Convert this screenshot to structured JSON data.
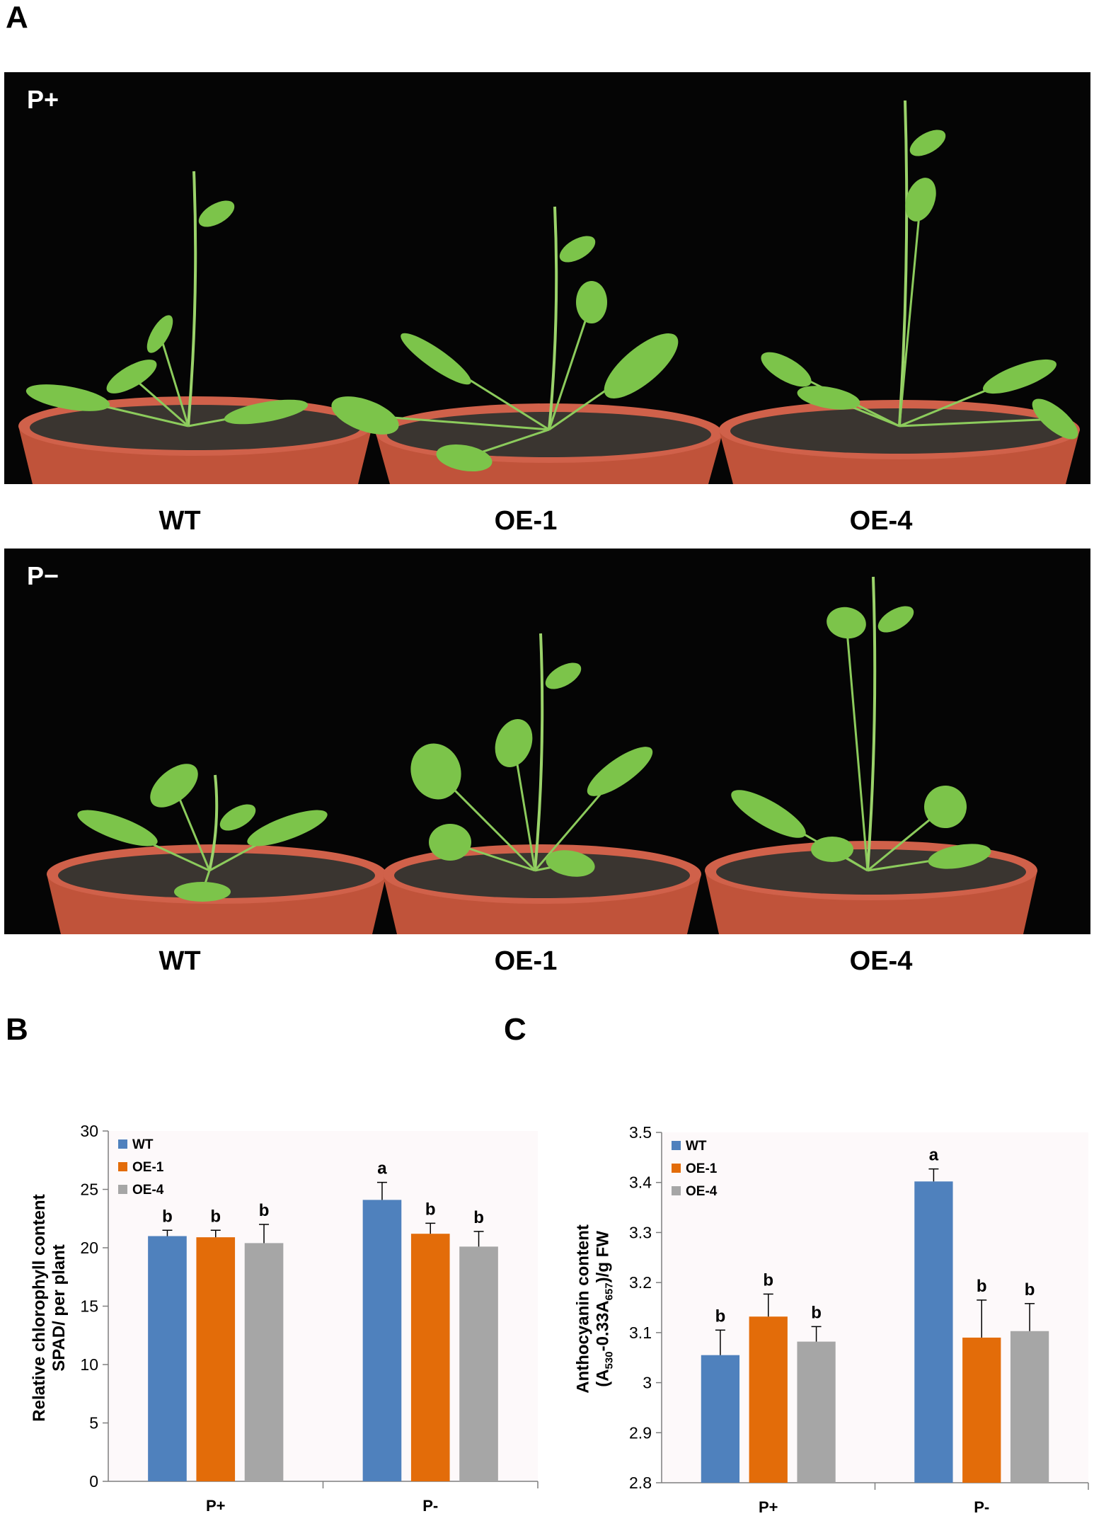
{
  "panel_a": {
    "letter": "A",
    "top_condition": "P+",
    "bottom_condition": "P−",
    "genotypes": [
      "WT",
      "OE-1",
      "OE-4"
    ]
  },
  "panel_b": {
    "letter": "B"
  },
  "panel_c": {
    "letter": "C"
  },
  "colors": {
    "WT": "#4f81bd",
    "OE-1": "#e36c09",
    "OE-4": "#a6a6a6",
    "photo_bg": "#050505",
    "pot": "#c0533a",
    "leaf": "#7cc44a"
  },
  "chart_data": [
    {
      "type": "bar",
      "ylabel_line1": "Relative chlorophyll content",
      "ylabel_line2": "SPAD/ per plant",
      "categories": [
        "P+",
        "P-"
      ],
      "ylim": [
        0,
        30
      ],
      "yticks": [
        0,
        5,
        10,
        15,
        20,
        25,
        30
      ],
      "legend_position": "top-left",
      "series": [
        {
          "name": "WT",
          "color": "#4f81bd",
          "values": [
            21.0,
            24.1
          ],
          "errors": [
            0.5,
            1.5
          ],
          "letters": [
            "b",
            "a"
          ]
        },
        {
          "name": "OE-1",
          "color": "#e36c09",
          "values": [
            20.9,
            21.2
          ],
          "errors": [
            0.6,
            0.9
          ],
          "letters": [
            "b",
            "b"
          ]
        },
        {
          "name": "OE-4",
          "color": "#a6a6a6",
          "values": [
            20.4,
            20.1
          ],
          "errors": [
            1.6,
            1.3
          ],
          "letters": [
            "b",
            "b"
          ]
        }
      ]
    },
    {
      "type": "bar",
      "ylabel_line1": "Anthocyanin content",
      "ylabel_line2_parts": [
        {
          "t": "(A",
          "sub": false
        },
        {
          "t": "530",
          "sub": true
        },
        {
          "t": "-0.33A",
          "sub": false
        },
        {
          "t": "657",
          "sub": true
        },
        {
          "t": ")/g  FW",
          "sub": false
        }
      ],
      "categories": [
        "P+",
        "P-"
      ],
      "ylim": [
        2.8,
        3.5
      ],
      "yticks": [
        2.8,
        2.9,
        3,
        3.1,
        3.2,
        3.3,
        3.4,
        3.5
      ],
      "legend_position": "top-left",
      "series": [
        {
          "name": "WT",
          "color": "#4f81bd",
          "values": [
            3.055,
            3.402
          ],
          "errors": [
            0.05,
            0.025
          ],
          "letters": [
            "b",
            "a"
          ]
        },
        {
          "name": "OE-1",
          "color": "#e36c09",
          "values": [
            3.132,
            3.09
          ],
          "errors": [
            0.045,
            0.075
          ],
          "letters": [
            "b",
            "b"
          ]
        },
        {
          "name": "OE-4",
          "color": "#a6a6a6",
          "values": [
            3.082,
            3.103
          ],
          "errors": [
            0.03,
            0.055
          ],
          "letters": [
            "b",
            "b"
          ]
        }
      ]
    }
  ]
}
